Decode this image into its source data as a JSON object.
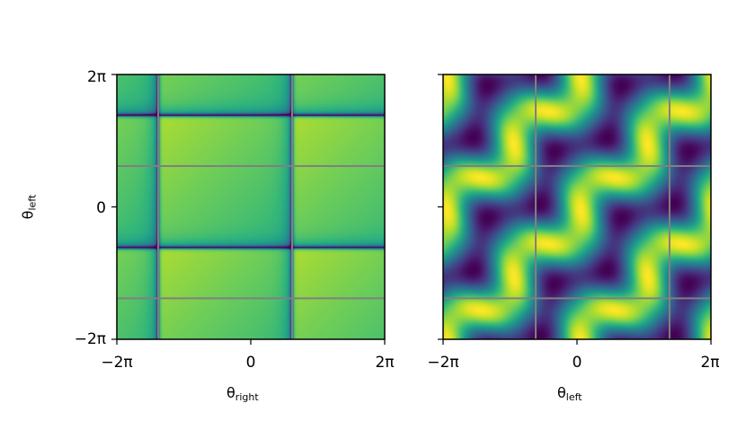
{
  "chart_data": [
    {
      "type": "heatmap",
      "colormap": "viridis",
      "xlabel": {
        "symbol": "θ",
        "sub": "right"
      },
      "ylabel": {
        "symbol": "θ",
        "sub": "left"
      },
      "xlim": [
        -6.283,
        6.283
      ],
      "ylim": [
        -6.283,
        6.283
      ],
      "xticks": [
        "−2π",
        "0",
        "2π"
      ],
      "yticks": [
        "−2π",
        "0",
        "2π"
      ],
      "grid_lines_x": [
        -4.34,
        1.94
      ],
      "grid_lines_y": [
        1.94,
        -4.34
      ],
      "grid_color": "#808080",
      "dark_lines_x": [
        -4.34,
        1.94
      ],
      "dark_lines_y": [
        4.34,
        -1.94
      ],
      "value_range": "mostly high (yellow-green) with thin dark lines"
    },
    {
      "type": "heatmap",
      "colormap": "viridis",
      "xlabel": {
        "symbol": "θ",
        "sub": "left"
      },
      "ylabel": "",
      "xlim": [
        -6.283,
        6.283
      ],
      "ylim": [
        -6.283,
        6.283
      ],
      "xticks": [
        "−2π",
        "0",
        "2π"
      ],
      "yticks": [
        "",
        "",
        ""
      ],
      "grid_lines_x": [
        -1.94,
        4.34
      ],
      "grid_lines_y": [
        1.94,
        -4.34
      ],
      "grid_color": "#808080",
      "value_range": "periodic wave pattern, period 2π in both axes"
    }
  ]
}
